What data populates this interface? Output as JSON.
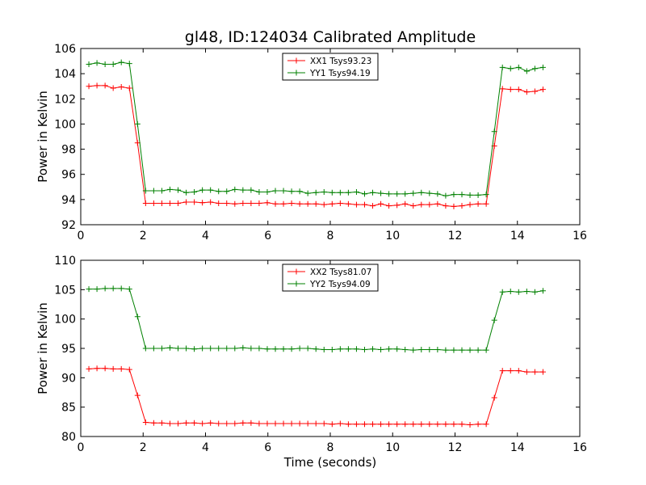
{
  "chart_data": [
    {
      "type": "line",
      "title": "gl48, ID:124034 Calibrated Amplitude",
      "xlabel": "",
      "ylabel": "Power in Kelvin",
      "xlim": [
        0,
        16
      ],
      "ylim": [
        92,
        106
      ],
      "xticks": [
        0,
        2,
        4,
        6,
        8,
        10,
        12,
        14,
        16
      ],
      "yticks": [
        92,
        94,
        96,
        98,
        100,
        102,
        104,
        106
      ],
      "legend": "top-center",
      "grid": false,
      "x": [
        0.26,
        0.52,
        0.78,
        1.04,
        1.3,
        1.56,
        1.82,
        2.08,
        2.34,
        2.6,
        2.86,
        3.12,
        3.38,
        3.64,
        3.9,
        4.16,
        4.42,
        4.68,
        4.94,
        5.2,
        5.46,
        5.72,
        5.98,
        6.24,
        6.5,
        6.76,
        7.02,
        7.28,
        7.54,
        7.8,
        8.06,
        8.32,
        8.58,
        8.84,
        9.1,
        9.36,
        9.62,
        9.88,
        10.14,
        10.4,
        10.66,
        10.92,
        11.18,
        11.44,
        11.7,
        11.96,
        12.22,
        12.48,
        12.74,
        13.0,
        13.26,
        13.52,
        13.78,
        14.04,
        14.3,
        14.56,
        14.82
      ],
      "series": [
        {
          "name": "XX1 Tsys93.23",
          "color": "#ff0000",
          "values": [
            103.0,
            103.05,
            103.05,
            102.85,
            102.95,
            102.85,
            98.5,
            93.7,
            93.7,
            93.7,
            93.7,
            93.7,
            93.8,
            93.8,
            93.75,
            93.8,
            93.7,
            93.7,
            93.65,
            93.7,
            93.7,
            93.7,
            93.75,
            93.65,
            93.65,
            93.7,
            93.65,
            93.65,
            93.65,
            93.6,
            93.65,
            93.7,
            93.65,
            93.6,
            93.6,
            93.5,
            93.65,
            93.5,
            93.55,
            93.65,
            93.5,
            93.6,
            93.6,
            93.65,
            93.5,
            93.45,
            93.5,
            93.6,
            93.65,
            93.65,
            98.25,
            102.8,
            102.75,
            102.75,
            102.55,
            102.6,
            102.75
          ]
        },
        {
          "name": "YY1 Tsys94.19",
          "color": "#008000",
          "values": [
            104.75,
            104.85,
            104.75,
            104.75,
            104.9,
            104.8,
            100.0,
            94.7,
            94.7,
            94.7,
            94.8,
            94.75,
            94.55,
            94.6,
            94.75,
            94.75,
            94.65,
            94.65,
            94.8,
            94.75,
            94.75,
            94.6,
            94.6,
            94.7,
            94.7,
            94.65,
            94.65,
            94.5,
            94.55,
            94.6,
            94.55,
            94.55,
            94.55,
            94.6,
            94.45,
            94.55,
            94.5,
            94.45,
            94.45,
            94.45,
            94.5,
            94.55,
            94.5,
            94.45,
            94.3,
            94.4,
            94.4,
            94.35,
            94.35,
            94.4,
            99.4,
            104.5,
            104.4,
            104.5,
            104.2,
            104.4,
            104.5
          ]
        }
      ]
    },
    {
      "type": "line",
      "title": "",
      "xlabel": "Time (seconds)",
      "ylabel": "Power in Kelvin",
      "xlim": [
        0,
        16
      ],
      "ylim": [
        80,
        110
      ],
      "xticks": [
        0,
        2,
        4,
        6,
        8,
        10,
        12,
        14,
        16
      ],
      "yticks": [
        80,
        85,
        90,
        95,
        100,
        105,
        110
      ],
      "legend": "top-center",
      "grid": false,
      "x": [
        0.26,
        0.52,
        0.78,
        1.04,
        1.3,
        1.56,
        1.82,
        2.08,
        2.34,
        2.6,
        2.86,
        3.12,
        3.38,
        3.64,
        3.9,
        4.16,
        4.42,
        4.68,
        4.94,
        5.2,
        5.46,
        5.72,
        5.98,
        6.24,
        6.5,
        6.76,
        7.02,
        7.28,
        7.54,
        7.8,
        8.06,
        8.32,
        8.58,
        8.84,
        9.1,
        9.36,
        9.62,
        9.88,
        10.14,
        10.4,
        10.66,
        10.92,
        11.18,
        11.44,
        11.7,
        11.96,
        12.22,
        12.48,
        12.74,
        13.0,
        13.26,
        13.52,
        13.78,
        14.04,
        14.3,
        14.56,
        14.82
      ],
      "series": [
        {
          "name": "XX2 Tsys81.07",
          "color": "#ff0000",
          "values": [
            91.5,
            91.6,
            91.6,
            91.5,
            91.5,
            91.4,
            87.0,
            82.4,
            82.3,
            82.3,
            82.2,
            82.2,
            82.3,
            82.3,
            82.2,
            82.3,
            82.2,
            82.2,
            82.2,
            82.3,
            82.3,
            82.2,
            82.2,
            82.2,
            82.2,
            82.2,
            82.2,
            82.2,
            82.2,
            82.2,
            82.1,
            82.2,
            82.1,
            82.1,
            82.1,
            82.1,
            82.1,
            82.1,
            82.1,
            82.1,
            82.1,
            82.1,
            82.1,
            82.1,
            82.1,
            82.1,
            82.1,
            82.0,
            82.1,
            82.1,
            86.6,
            91.2,
            91.2,
            91.2,
            91.0,
            91.0,
            91.0
          ]
        },
        {
          "name": "YY2 Tsys94.09",
          "color": "#008000",
          "values": [
            105.1,
            105.1,
            105.2,
            105.2,
            105.2,
            105.1,
            100.4,
            95.0,
            95.0,
            95.0,
            95.1,
            95.0,
            95.0,
            94.9,
            95.0,
            95.0,
            95.0,
            95.0,
            95.0,
            95.1,
            95.0,
            95.0,
            94.9,
            94.9,
            94.9,
            94.9,
            95.0,
            95.0,
            94.9,
            94.8,
            94.8,
            94.9,
            94.9,
            94.9,
            94.8,
            94.9,
            94.8,
            94.9,
            94.9,
            94.8,
            94.7,
            94.8,
            94.8,
            94.8,
            94.7,
            94.7,
            94.7,
            94.7,
            94.7,
            94.7,
            99.8,
            104.6,
            104.7,
            104.6,
            104.7,
            104.6,
            104.8
          ]
        }
      ]
    }
  ]
}
